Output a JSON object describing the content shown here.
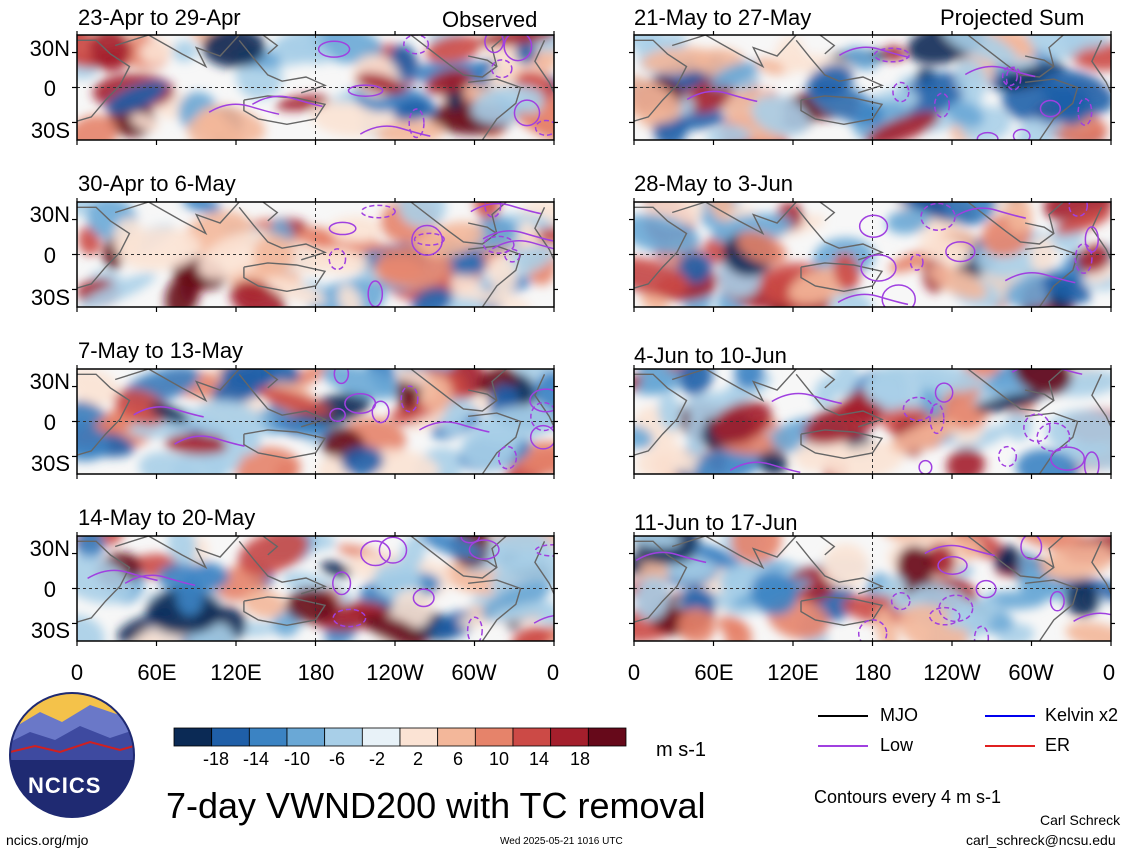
{
  "left_column_label": "Observed",
  "right_column_label": "Projected Sum",
  "panels_left": [
    {
      "title": "23-Apr to 29-Apr"
    },
    {
      "title": "30-Apr to 6-May"
    },
    {
      "title": "7-May to 13-May"
    },
    {
      "title": "14-May to 20-May"
    }
  ],
  "panels_right": [
    {
      "title": "21-May to 27-May"
    },
    {
      "title": "28-May to 3-Jun"
    },
    {
      "title": "4-Jun to 10-Jun"
    },
    {
      "title": "11-Jun to 17-Jun"
    }
  ],
  "lat_labels": [
    "30N",
    "0",
    "30S"
  ],
  "lon_labels": [
    "0",
    "60E",
    "120E",
    "180",
    "120W",
    "60W",
    "0"
  ],
  "colorbar": {
    "labels": [
      "-18",
      "-14",
      "-10",
      "-6",
      "-2",
      "2",
      "6",
      "10",
      "14",
      "18"
    ],
    "colors": [
      "#0b2a55",
      "#1f5fa8",
      "#3b83c3",
      "#6aa8d6",
      "#a8cfe8",
      "#e8f2f8",
      "#fbe3d4",
      "#f3b79a",
      "#e6836a",
      "#cc4a46",
      "#a41f2c",
      "#66091a"
    ],
    "units": "m s-1"
  },
  "legend": {
    "items": [
      {
        "label": "MJO",
        "color": "#000000"
      },
      {
        "label": "Kelvin x2",
        "color": "#0000ee"
      },
      {
        "label": "Low",
        "color": "#a040e0"
      },
      {
        "label": "ER",
        "color": "#e02020"
      }
    ],
    "contours_note": "Contours every 4 m s-1"
  },
  "main_title": "7-day VWND200 with TC removal",
  "logo_text": "NCICS",
  "footer": {
    "site": "ncics.org/mjo",
    "timestamp": "Wed 2025-05-21 1016 UTC",
    "author": "Carl Schreck",
    "email": "carl_schreck@ncsu.edu"
  }
}
